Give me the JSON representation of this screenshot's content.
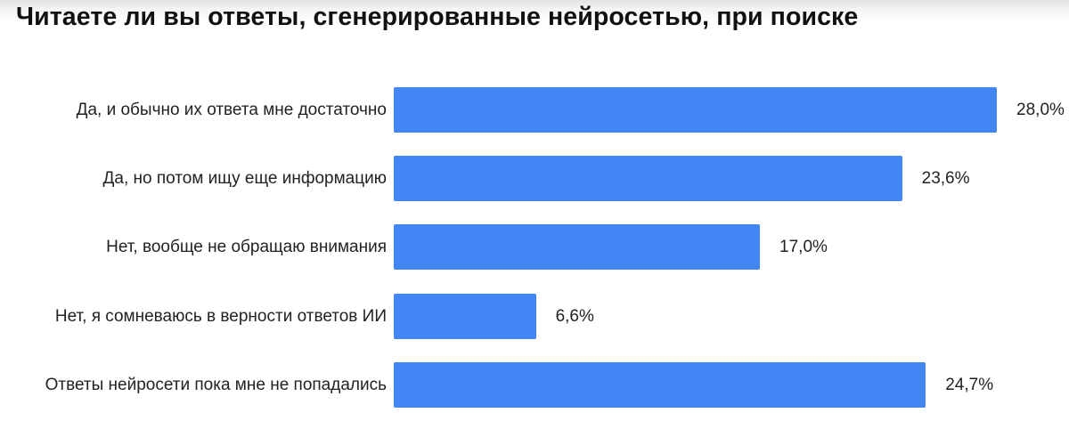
{
  "chart_data": {
    "type": "bar",
    "orientation": "horizontal",
    "title": "Читаете ли вы ответы, сгенерированные нейросетью, при поиске",
    "xlabel": "",
    "ylabel": "",
    "categories": [
      "Да, и обычно их ответа мне достаточно",
      "Да, но потом ищу еще информацию",
      "Нет, вообще не обращаю внимания",
      "Нет, я сомневаюсь в верности ответов ИИ",
      "Ответы нейросети пока мне не попадались"
    ],
    "values": [
      28.0,
      23.6,
      17.0,
      6.6,
      24.7
    ],
    "value_labels": [
      "28,0%",
      "23,6%",
      "17,0%",
      "6,6%",
      "24,7%"
    ],
    "unit": "%",
    "grid": false,
    "legend": null,
    "bar_color": "#4285f4"
  },
  "rows": [
    {
      "label": "Да, и обычно их ответа мне достаточно",
      "value": 28.0,
      "value_label": "28,0%"
    },
    {
      "label": "Да, но потом ищу еще информацию",
      "value": 23.6,
      "value_label": "23,6%"
    },
    {
      "label": "Нет, вообще не обращаю внимания",
      "value": 17.0,
      "value_label": "17,0%"
    },
    {
      "label": "Нет, я сомневаюсь в верности ответов ИИ",
      "value": 6.6,
      "value_label": "6,6%"
    },
    {
      "label": "Ответы нейросети пока мне не попадались",
      "value": 24.7,
      "value_label": "24,7%"
    }
  ],
  "colors": {
    "bar": "#4285f4"
  }
}
